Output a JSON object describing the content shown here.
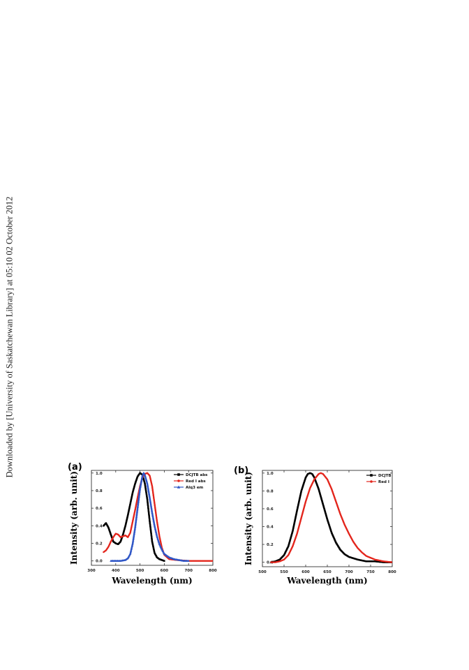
{
  "watermark": "Downloaded by [University of Saskatchewan Library] at 05:10 02 October 2012",
  "chart_data": [
    {
      "panel_label": "(a)",
      "type": "line",
      "xlabel": "Wavelength (nm)",
      "ylabel": "Intensity (arb. unit)",
      "xlim": [
        300,
        800
      ],
      "ylim": [
        -0.05,
        1.03
      ],
      "xticks": [
        300,
        400,
        500,
        600,
        700,
        800
      ],
      "yticks": [
        0.0,
        0.2,
        0.4,
        0.6,
        0.8,
        1.0
      ],
      "xtick_labels": [
        "300",
        "400",
        "500",
        "600",
        "700",
        "800"
      ],
      "ytick_labels": [
        "0.0",
        "0.2",
        "0.4",
        "0.6",
        "0.8",
        "1.0"
      ],
      "legend_position": "top-right",
      "series": [
        {
          "name": "DCJTB abs",
          "color": "#000000",
          "marker": "square",
          "x": [
            350,
            360,
            370,
            380,
            390,
            400,
            410,
            420,
            430,
            440,
            450,
            460,
            470,
            480,
            490,
            500,
            510,
            520,
            530,
            540,
            550,
            560,
            570,
            580,
            590,
            600
          ],
          "y": [
            0.4,
            0.43,
            0.38,
            0.3,
            0.22,
            0.2,
            0.19,
            0.22,
            0.3,
            0.4,
            0.52,
            0.65,
            0.78,
            0.88,
            0.96,
            1.0,
            0.98,
            0.88,
            0.7,
            0.45,
            0.22,
            0.09,
            0.04,
            0.02,
            0.01,
            0.0
          ]
        },
        {
          "name": "Red I abs",
          "color": "#e3261d",
          "marker": "circle",
          "x": [
            350,
            360,
            370,
            380,
            390,
            400,
            410,
            420,
            430,
            440,
            450,
            460,
            470,
            480,
            490,
            500,
            510,
            520,
            530,
            540,
            550,
            560,
            570,
            580,
            590,
            600,
            620,
            650,
            700,
            750,
            800
          ],
          "y": [
            0.1,
            0.12,
            0.16,
            0.22,
            0.27,
            0.31,
            0.3,
            0.27,
            0.28,
            0.29,
            0.27,
            0.32,
            0.45,
            0.58,
            0.72,
            0.85,
            0.95,
            0.99,
            1.0,
            0.97,
            0.85,
            0.65,
            0.45,
            0.28,
            0.15,
            0.07,
            0.02,
            0.01,
            0.0,
            0.0,
            0.0
          ]
        },
        {
          "name": "Alq3 em",
          "color": "#2f56c6",
          "marker": "triangle",
          "x": [
            380,
            400,
            420,
            440,
            450,
            460,
            470,
            480,
            490,
            500,
            510,
            515,
            520,
            530,
            540,
            550,
            560,
            570,
            580,
            590,
            600,
            620,
            640,
            660,
            680,
            700
          ],
          "y": [
            0.0,
            0.0,
            0.0,
            0.01,
            0.03,
            0.08,
            0.2,
            0.38,
            0.6,
            0.82,
            0.97,
            1.0,
            0.98,
            0.88,
            0.72,
            0.55,
            0.4,
            0.28,
            0.19,
            0.13,
            0.08,
            0.04,
            0.02,
            0.01,
            0.0,
            0.0
          ]
        }
      ]
    },
    {
      "panel_label": "(b)",
      "type": "line",
      "xlabel": "Wavelength (nm)",
      "ylabel": "Intensity (arb. unit)",
      "xlim": [
        500,
        800
      ],
      "ylim": [
        -0.05,
        1.03
      ],
      "xticks": [
        500,
        550,
        600,
        650,
        700,
        750,
        800
      ],
      "yticks": [
        0.0,
        0.2,
        0.4,
        0.6,
        0.8,
        1.0
      ],
      "xtick_labels": [
        "500",
        "550",
        "600",
        "650",
        "700",
        "750",
        "800"
      ],
      "ytick_labels": [
        "0.0",
        "0.2",
        "0.4",
        "0.6",
        "0.8",
        "1.0"
      ],
      "legend_position": "top-right",
      "series": [
        {
          "name": "DCJTB",
          "color": "#000000",
          "marker": "square",
          "x": [
            520,
            530,
            540,
            550,
            560,
            570,
            580,
            590,
            600,
            605,
            610,
            615,
            620,
            630,
            640,
            650,
            660,
            670,
            680,
            690,
            700,
            720,
            740,
            760,
            780,
            800
          ],
          "y": [
            0.0,
            0.01,
            0.03,
            0.08,
            0.18,
            0.35,
            0.58,
            0.8,
            0.95,
            0.99,
            1.0,
            0.99,
            0.95,
            0.82,
            0.65,
            0.48,
            0.33,
            0.22,
            0.14,
            0.09,
            0.06,
            0.03,
            0.01,
            0.01,
            0.0,
            0.0
          ]
        },
        {
          "name": "Red I",
          "color": "#e3261d",
          "marker": "circle",
          "x": [
            520,
            530,
            540,
            550,
            560,
            570,
            580,
            590,
            600,
            610,
            620,
            630,
            635,
            640,
            650,
            660,
            670,
            680,
            690,
            700,
            710,
            720,
            730,
            740,
            760,
            780,
            800
          ],
          "y": [
            0.0,
            0.0,
            0.01,
            0.03,
            0.08,
            0.18,
            0.32,
            0.5,
            0.68,
            0.83,
            0.93,
            0.99,
            1.0,
            0.99,
            0.93,
            0.82,
            0.68,
            0.54,
            0.42,
            0.32,
            0.23,
            0.16,
            0.11,
            0.07,
            0.03,
            0.01,
            0.0
          ]
        }
      ]
    }
  ]
}
